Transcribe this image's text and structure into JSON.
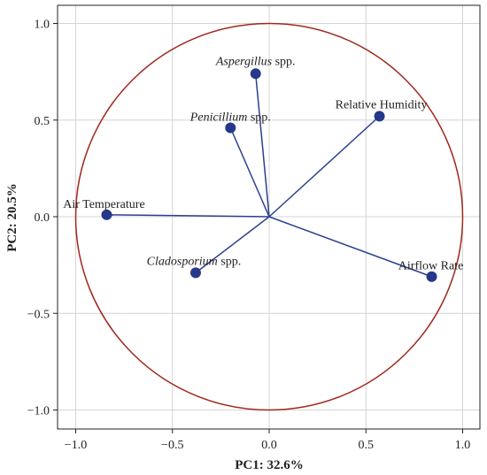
{
  "chart_data": {
    "type": "scatter",
    "subtype": "pca-loading-plot",
    "xlabel": "PC1: 32.6%",
    "ylabel": "PC2: 20.5%",
    "xlim": [
      -1.1,
      1.1
    ],
    "ylim": [
      -1.1,
      1.1
    ],
    "x_ticks": [
      -1.0,
      -0.5,
      0.0,
      0.5,
      1.0
    ],
    "y_ticks": [
      -1.0,
      -0.5,
      0.0,
      0.5,
      1.0
    ],
    "x_tick_labels": [
      "−1.0",
      "−0.5",
      "0.0",
      "0.5",
      "1.0"
    ],
    "y_tick_labels": [
      "−1.0",
      "−0.5",
      "0.0",
      "0.5",
      "1.0"
    ],
    "grid": true,
    "unit_circle": true,
    "colors": {
      "vector": "#2b3f8f",
      "point": "#26388a",
      "circle": "#a0281c",
      "grid": "#d4d4d4"
    },
    "points": [
      {
        "label": "Aspergillus",
        "suffix": " spp.",
        "italic": true,
        "x": -0.07,
        "y": 0.74
      },
      {
        "label": "Penicillium",
        "suffix": " spp.",
        "italic": true,
        "x": -0.2,
        "y": 0.46
      },
      {
        "label": "Relative Humidity",
        "suffix": "",
        "italic": false,
        "x": 0.57,
        "y": 0.52
      },
      {
        "label": "Air Temperature",
        "suffix": "",
        "italic": false,
        "x": -0.84,
        "y": 0.01
      },
      {
        "label": "Cladosporium",
        "suffix": " spp.",
        "italic": true,
        "x": -0.38,
        "y": -0.29
      },
      {
        "label": "Airflow Rate",
        "suffix": "",
        "italic": false,
        "x": 0.84,
        "y": -0.31
      }
    ]
  }
}
